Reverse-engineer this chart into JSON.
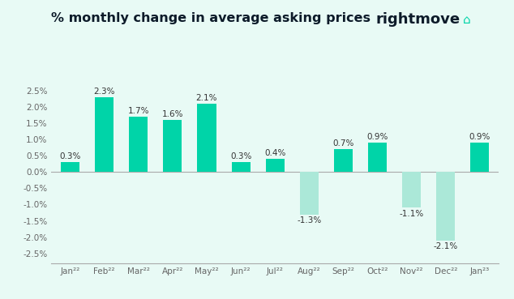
{
  "categories": [
    "Jan²²",
    "Feb²²",
    "Mar²²",
    "Apr²²",
    "May²²",
    "Jun²²",
    "Jul²²",
    "Aug²²",
    "Sep²²",
    "Oct²²",
    "Nov²²",
    "Dec²²",
    "Jan²³"
  ],
  "values": [
    0.3,
    2.3,
    1.7,
    1.6,
    2.1,
    0.3,
    0.4,
    -1.3,
    0.7,
    0.9,
    -1.1,
    -2.1,
    0.9
  ],
  "bar_color_positive": "#00d4a8",
  "bar_color_negative": "#abe8d8",
  "background_color": "#e8faf5",
  "outer_background": "#ffffff",
  "title": "% monthly change in average asking prices",
  "title_fontsize": 11.5,
  "title_color": "#0d1b2a",
  "label_fontsize": 7.5,
  "label_color": "#333333",
  "tick_fontsize": 7.5,
  "tick_color": "#666666",
  "ylim": [
    -2.8,
    2.9
  ],
  "yticks": [
    -2.5,
    -2.0,
    -1.5,
    -1.0,
    -0.5,
    0.0,
    0.5,
    1.0,
    1.5,
    2.0,
    2.5
  ],
  "logo_text": "rightmove",
  "logo_fontsize": 13,
  "logo_color": "#0d1b2a",
  "house_color": "#00d4a8"
}
